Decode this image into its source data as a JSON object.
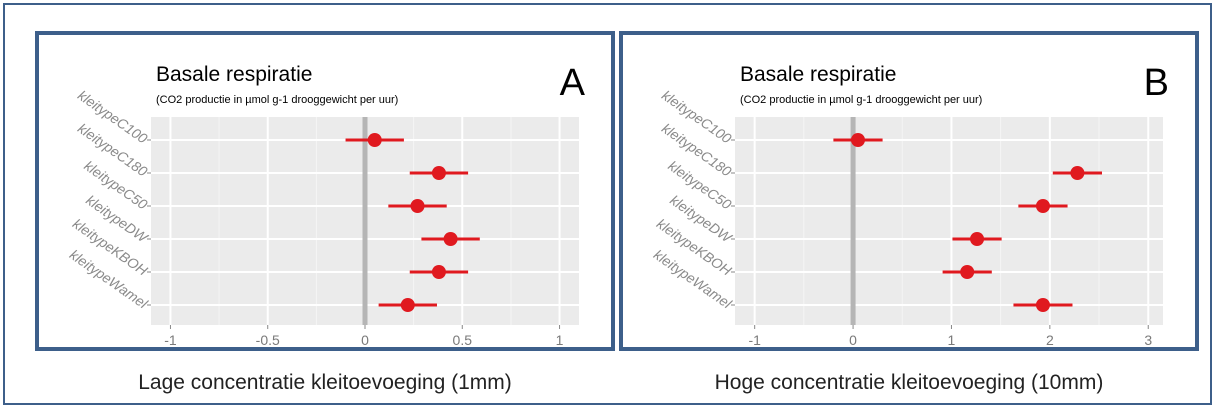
{
  "chart_data": [
    {
      "type": "scatter",
      "panel_letter": "A",
      "title": "Basale respiratie",
      "subtitle": "(CO2 productie in µmol g-1 drooggewicht per uur)",
      "caption": "Lage concentratie kleitoevoeging (1mm)",
      "categories": [
        "kleitypeC100",
        "kleitypeC180",
        "kleitypeC50",
        "kleitypeDW",
        "kleitypeKBOH",
        "kleitypeWamel"
      ],
      "x_ticks": [
        -1,
        -0.5,
        0,
        0.5,
        1
      ],
      "x_tick_labels": [
        "-1",
        "-0.5",
        "0",
        "0.5",
        "1"
      ],
      "xlim": [
        -1.1,
        1.1
      ],
      "reference_line": 0,
      "estimates": [
        0.05,
        0.38,
        0.27,
        0.44,
        0.38,
        0.22
      ],
      "lower": [
        -0.1,
        0.23,
        0.12,
        0.29,
        0.23,
        0.07
      ],
      "upper": [
        0.2,
        0.53,
        0.42,
        0.59,
        0.53,
        0.37
      ],
      "point_color": "#e0191f",
      "panel_bg": "#ebebeb",
      "grid": true
    },
    {
      "type": "scatter",
      "panel_letter": "B",
      "title": "Basale respiratie",
      "subtitle": "(CO2 productie in µmol g-1 drooggewicht per uur)",
      "caption": "Hoge concentratie kleitoevoeging (10mm)",
      "categories": [
        "kleitypeC100",
        "kleitypeC180",
        "kleitypeC50",
        "kleitypeDW",
        "kleitypeKBOH",
        "kleitypeWamel"
      ],
      "x_ticks": [
        -1,
        0,
        1,
        2,
        3
      ],
      "x_tick_labels": [
        "-1",
        "0",
        "1",
        "2",
        "3"
      ],
      "xlim": [
        -1.2,
        3.15
      ],
      "reference_line": 0,
      "estimates": [
        0.05,
        2.28,
        1.93,
        1.26,
        1.16,
        1.93
      ],
      "lower": [
        -0.2,
        2.03,
        1.68,
        1.01,
        0.91,
        1.63
      ],
      "upper": [
        0.3,
        2.53,
        2.18,
        1.51,
        1.41,
        2.23
      ],
      "point_color": "#e0191f",
      "panel_bg": "#ebebeb",
      "grid": true
    }
  ]
}
